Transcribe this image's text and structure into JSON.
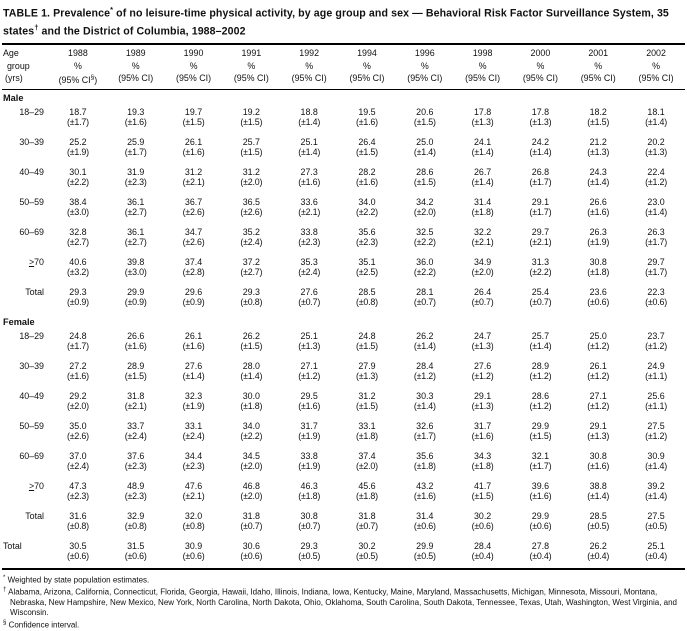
{
  "title": {
    "part1": "TABLE 1. Prevalence",
    "sup1": "*",
    "part2": " of no leisure-time physical activity, by age group and sex — Behavioral Risk Factor Surveillance System, 35 states",
    "sup2": "†",
    "part3": " and the District of Columbia, 1988–2002"
  },
  "table": {
    "header": {
      "age_lines": [
        "Age",
        "group",
        "(yrs)"
      ],
      "years": [
        "1988",
        "1989",
        "1990",
        "1991",
        "1992",
        "1994",
        "1996",
        "1998",
        "2000",
        "2001",
        "2002"
      ],
      "pct": "%",
      "ci": "(95% CI)",
      "ci_first_parts": [
        "(95% CI",
        "§",
        ")"
      ]
    },
    "sections": [
      {
        "label": "Male",
        "rows": [
          {
            "age": "18–29",
            "values": [
              "18.7",
              "19.3",
              "19.7",
              "19.2",
              "18.8",
              "19.5",
              "20.6",
              "17.8",
              "17.8",
              "18.2",
              "18.1"
            ],
            "cis": [
              "(±1.7)",
              "(±1.6)",
              "(±1.5)",
              "(±1.5)",
              "(±1.4)",
              "(±1.6)",
              "(±1.5)",
              "(±1.3)",
              "(±1.3)",
              "(±1.5)",
              "(±1.4)"
            ]
          },
          {
            "age": "30–39",
            "values": [
              "25.2",
              "25.9",
              "26.1",
              "25.7",
              "25.1",
              "26.4",
              "25.0",
              "24.1",
              "24.2",
              "21.2",
              "20.2"
            ],
            "cis": [
              "(±1.9)",
              "(±1.7)",
              "(±1.6)",
              "(±1.5)",
              "(±1.4)",
              "(±1.5)",
              "(±1.4)",
              "(±1.4)",
              "(±1.4)",
              "(±1.3)",
              "(±1.3)"
            ]
          },
          {
            "age": "40–49",
            "values": [
              "30.1",
              "31.9",
              "31.2",
              "31.2",
              "27.3",
              "28.2",
              "28.6",
              "26.7",
              "26.8",
              "24.3",
              "22.4"
            ],
            "cis": [
              "(±2.2)",
              "(±2.3)",
              "(±2.1)",
              "(±2.0)",
              "(±1.6)",
              "(±1.6)",
              "(±1.5)",
              "(±1.4)",
              "(±1.7)",
              "(±1.4)",
              "(±1.2)"
            ]
          },
          {
            "age": "50–59",
            "values": [
              "38.4",
              "36.1",
              "36.7",
              "36.5",
              "33.6",
              "34.0",
              "34.2",
              "31.4",
              "29.1",
              "26.6",
              "23.0"
            ],
            "cis": [
              "(±3.0)",
              "(±2.7)",
              "(±2.6)",
              "(±2.6)",
              "(±2.1)",
              "(±2.2)",
              "(±2.0)",
              "(±1.8)",
              "(±1.7)",
              "(±1.6)",
              "(±1.4)"
            ]
          },
          {
            "age": "60–69",
            "values": [
              "32.8",
              "36.1",
              "34.7",
              "35.2",
              "33.8",
              "35.6",
              "32.5",
              "32.2",
              "29.7",
              "26.3",
              "26.3"
            ],
            "cis": [
              "(±2.7)",
              "(±2.7)",
              "(±2.6)",
              "(±2.4)",
              "(±2.3)",
              "(±2.3)",
              "(±2.2)",
              "(±2.1)",
              "(±2.1)",
              "(±1.9)",
              "(±1.7)"
            ]
          },
          {
            "age": ">70",
            "gte": true,
            "values": [
              "40.6",
              "39.8",
              "37.4",
              "37.2",
              "35.3",
              "35.1",
              "36.0",
              "34.9",
              "31.3",
              "30.8",
              "29.7"
            ],
            "cis": [
              "(±3.2)",
              "(±3.0)",
              "(±2.8)",
              "(±2.7)",
              "(±2.4)",
              "(±2.5)",
              "(±2.2)",
              "(±2.0)",
              "(±2.2)",
              "(±1.8)",
              "(±1.7)"
            ]
          },
          {
            "age": "Total",
            "values": [
              "29.3",
              "29.9",
              "29.6",
              "29.3",
              "27.6",
              "28.5",
              "28.1",
              "26.4",
              "25.4",
              "23.6",
              "22.3"
            ],
            "cis": [
              "(±0.9)",
              "(±0.9)",
              "(±0.9)",
              "(±0.8)",
              "(±0.7)",
              "(±0.8)",
              "(±0.7)",
              "(±0.7)",
              "(±0.7)",
              "(±0.6)",
              "(±0.6)"
            ]
          }
        ]
      },
      {
        "label": "Female",
        "rows": [
          {
            "age": "18–29",
            "values": [
              "24.8",
              "26.6",
              "26.1",
              "26.2",
              "25.1",
              "24.8",
              "26.2",
              "24.7",
              "25.7",
              "25.0",
              "23.7"
            ],
            "cis": [
              "(±1.7)",
              "(±1.6)",
              "(±1.6)",
              "(±1.5)",
              "(±1.3)",
              "(±1.5)",
              "(±1.4)",
              "(±1.3)",
              "(±1.4)",
              "(±1.2)",
              "(±1.2)"
            ]
          },
          {
            "age": "30–39",
            "values": [
              "27.2",
              "28.9",
              "27.6",
              "28.0",
              "27.1",
              "27.9",
              "28.4",
              "27.6",
              "28.9",
              "26.1",
              "24.9"
            ],
            "cis": [
              "(±1.6)",
              "(±1.5)",
              "(±1.4)",
              "(±1.4)",
              "(±1.2)",
              "(±1.3)",
              "(±1.2)",
              "(±1.2)",
              "(±1.2)",
              "(±1.2)",
              "(±1.1)"
            ]
          },
          {
            "age": "40–49",
            "values": [
              "29.2",
              "31.8",
              "32.3",
              "30.0",
              "29.5",
              "31.2",
              "30.3",
              "29.1",
              "28.6",
              "27.1",
              "25.6"
            ],
            "cis": [
              "(±2.0)",
              "(±2.1)",
              "(±1.9)",
              "(±1.8)",
              "(±1.6)",
              "(±1.5)",
              "(±1.4)",
              "(±1.3)",
              "(±1.2)",
              "(±1.2)",
              "(±1.1)"
            ]
          },
          {
            "age": "50–59",
            "values": [
              "35.0",
              "33.7",
              "33.1",
              "34.0",
              "31.7",
              "33.1",
              "32.6",
              "31.7",
              "29.9",
              "29.1",
              "27.5"
            ],
            "cis": [
              "(±2.6)",
              "(±2.4)",
              "(±2.4)",
              "(±2.2)",
              "(±1.9)",
              "(±1.8)",
              "(±1.7)",
              "(±1.6)",
              "(±1.5)",
              "(±1.3)",
              "(±1.2)"
            ]
          },
          {
            "age": "60–69",
            "values": [
              "37.0",
              "37.6",
              "34.4",
              "34.5",
              "33.8",
              "37.4",
              "35.6",
              "34.3",
              "32.1",
              "30.8",
              "30.9"
            ],
            "cis": [
              "(±2.4)",
              "(±2.3)",
              "(±2.3)",
              "(±2.0)",
              "(±1.9)",
              "(±2.0)",
              "(±1.8)",
              "(±1.8)",
              "(±1.7)",
              "(±1.6)",
              "(±1.4)"
            ]
          },
          {
            "age": ">70",
            "gte": true,
            "values": [
              "47.3",
              "48.9",
              "47.6",
              "46.8",
              "46.3",
              "45.6",
              "43.2",
              "41.7",
              "39.6",
              "38.8",
              "39.2"
            ],
            "cis": [
              "(±2.3)",
              "(±2.3)",
              "(±2.1)",
              "(±2.0)",
              "(±1.8)",
              "(±1.8)",
              "(±1.6)",
              "(±1.5)",
              "(±1.6)",
              "(±1.4)",
              "(±1.4)"
            ]
          },
          {
            "age": "Total",
            "values": [
              "31.6",
              "32.9",
              "32.0",
              "31.8",
              "30.8",
              "31.8",
              "31.4",
              "30.2",
              "29.9",
              "28.5",
              "27.5"
            ],
            "cis": [
              "(±0.8)",
              "(±0.8)",
              "(±0.8)",
              "(±0.7)",
              "(±0.7)",
              "(±0.7)",
              "(±0.6)",
              "(±0.6)",
              "(±0.6)",
              "(±0.5)",
              "(±0.5)"
            ]
          }
        ]
      },
      {
        "label": "",
        "rows": [
          {
            "age": "Total",
            "flush": true,
            "values": [
              "30.5",
              "31.5",
              "30.9",
              "30.6",
              "29.3",
              "30.2",
              "29.9",
              "28.4",
              "27.8",
              "26.2",
              "25.1"
            ],
            "cis": [
              "(±0.6)",
              "(±0.6)",
              "(±0.6)",
              "(±0.6)",
              "(±0.5)",
              "(±0.5)",
              "(±0.5)",
              "(±0.4)",
              "(±0.4)",
              "(±0.4)",
              "(±0.4)"
            ]
          }
        ]
      }
    ]
  },
  "footnotes": [
    {
      "sup": "*",
      "text": " Weighted by state population estimates."
    },
    {
      "sup": "†",
      "text": " Alabama, Arizona, California, Connecticut, Florida, Georgia, Hawaii, Idaho, Illinois, Indiana, Iowa, Kentucky, Maine, Maryland, Massachusetts, Michigan, Minnesota, Missouri, Montana, Nebraska, New Hampshire, New Mexico, New York, North Carolina, North Dakota, Ohio, Oklahoma, South Carolina, South Dakota, Tennessee, Texas, Utah, Washington, West Virginia, and Wisconsin."
    },
    {
      "sup": "§",
      "text": " Confidence interval."
    }
  ]
}
